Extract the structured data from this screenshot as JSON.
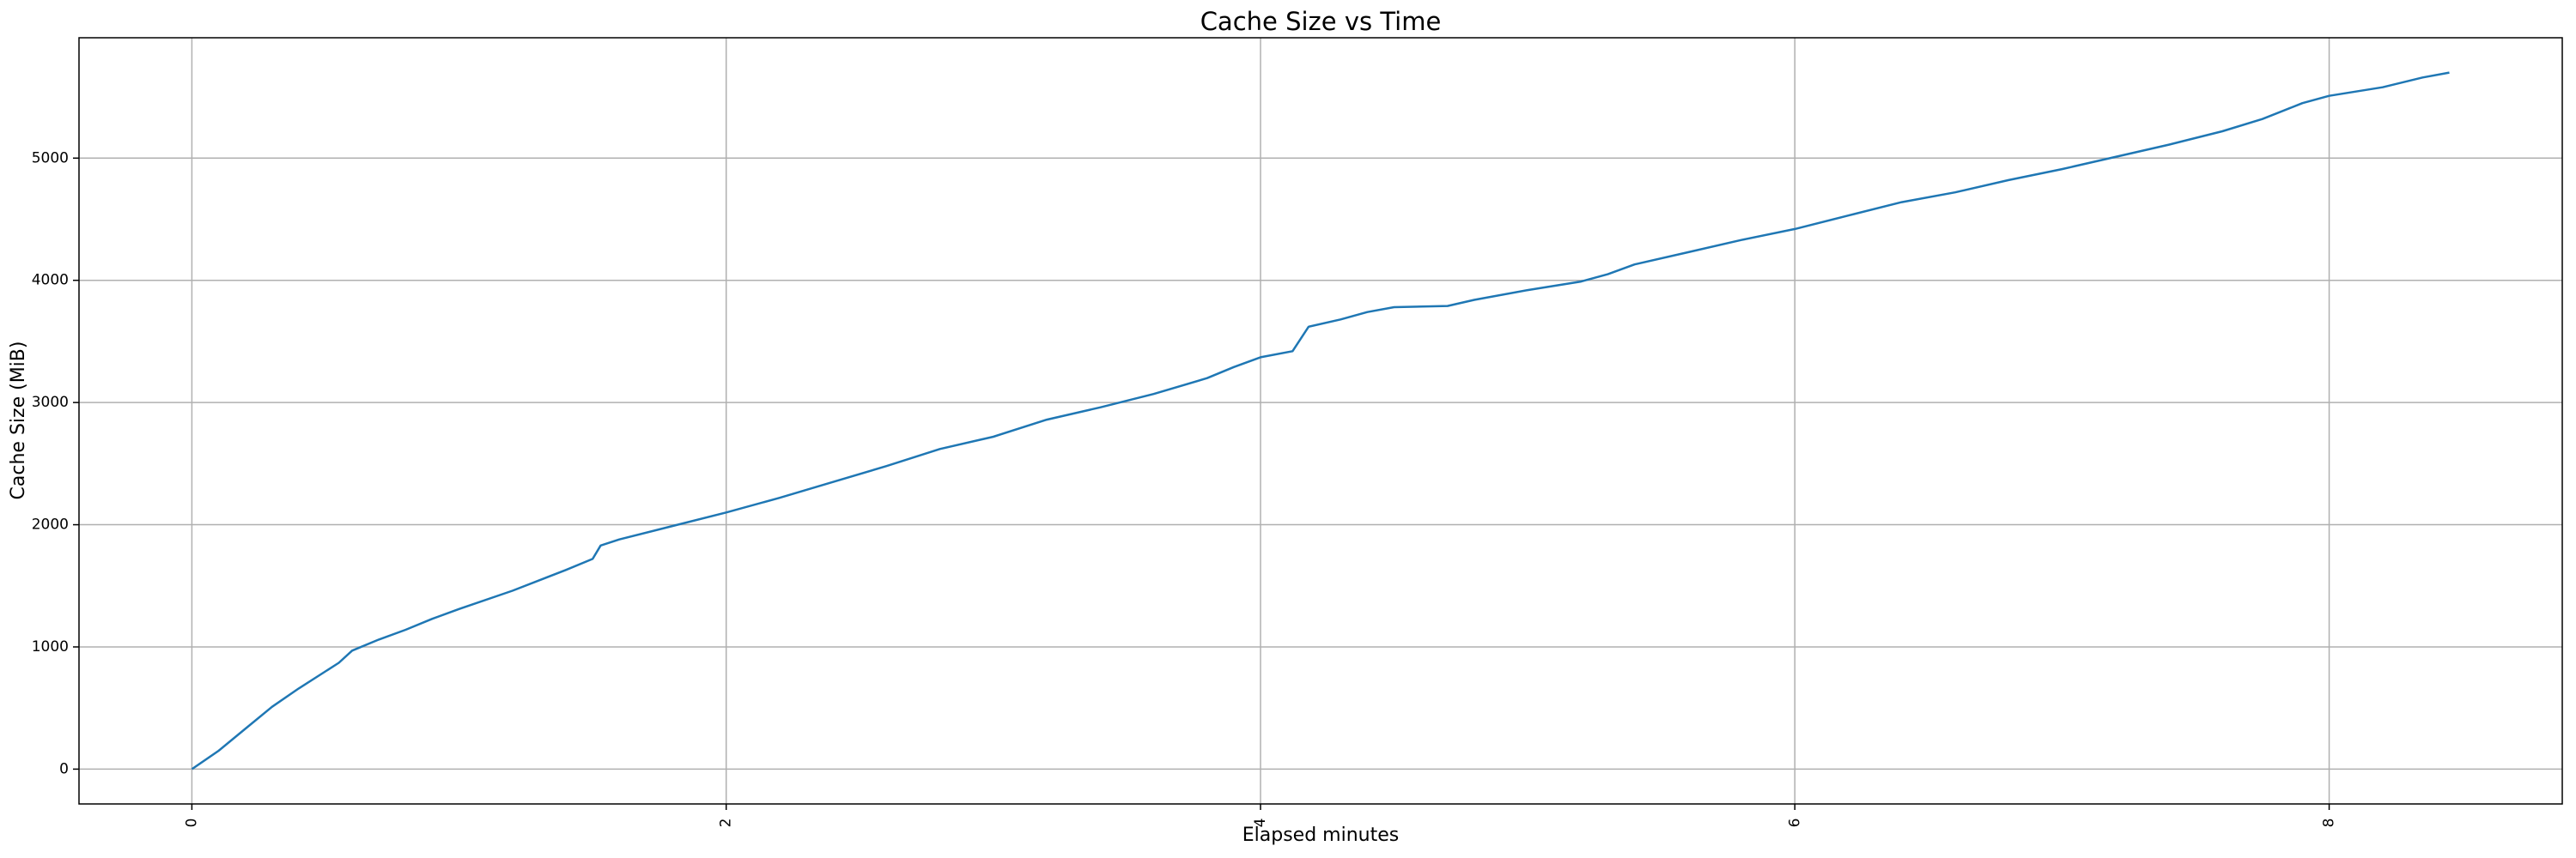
{
  "chart_data": {
    "type": "line",
    "title": "Cache Size vs Time",
    "xlabel": "Elapsed minutes",
    "ylabel": "Cache Size (MiB)",
    "color": "#1f77b4",
    "grid": true,
    "xlim": [
      -0.4225,
      8.8725
    ],
    "ylim": [
      -285,
      5985
    ],
    "xticks": [
      0,
      2,
      4,
      6,
      8
    ],
    "yticks": [
      0,
      1000,
      2000,
      3000,
      4000,
      5000
    ],
    "x": [
      0,
      0.1,
      0.2,
      0.3,
      0.4,
      0.5,
      0.55,
      0.6,
      0.7,
      0.8,
      0.9,
      1.0,
      1.2,
      1.4,
      1.5,
      1.53,
      1.6,
      1.8,
      2.0,
      2.2,
      2.4,
      2.6,
      2.8,
      3.0,
      3.2,
      3.4,
      3.6,
      3.8,
      3.9,
      4.0,
      4.12,
      4.18,
      4.3,
      4.4,
      4.5,
      4.7,
      4.8,
      5.0,
      5.2,
      5.3,
      5.4,
      5.6,
      5.8,
      6.0,
      6.2,
      6.4,
      6.6,
      6.8,
      7.0,
      7.2,
      7.4,
      7.6,
      7.75,
      7.9,
      8.0,
      8.2,
      8.35,
      8.45
    ],
    "values": [
      0,
      150,
      330,
      510,
      660,
      800,
      870,
      970,
      1060,
      1140,
      1230,
      1310,
      1460,
      1630,
      1720,
      1830,
      1880,
      1990,
      2100,
      2220,
      2350,
      2480,
      2620,
      2720,
      2860,
      2960,
      3070,
      3200,
      3290,
      3370,
      3420,
      3620,
      3680,
      3740,
      3780,
      3790,
      3840,
      3920,
      3990,
      4050,
      4130,
      4230,
      4330,
      4420,
      4530,
      4640,
      4720,
      4820,
      4910,
      5010,
      5110,
      5220,
      5320,
      5450,
      5510,
      5580,
      5660,
      5700
    ]
  }
}
